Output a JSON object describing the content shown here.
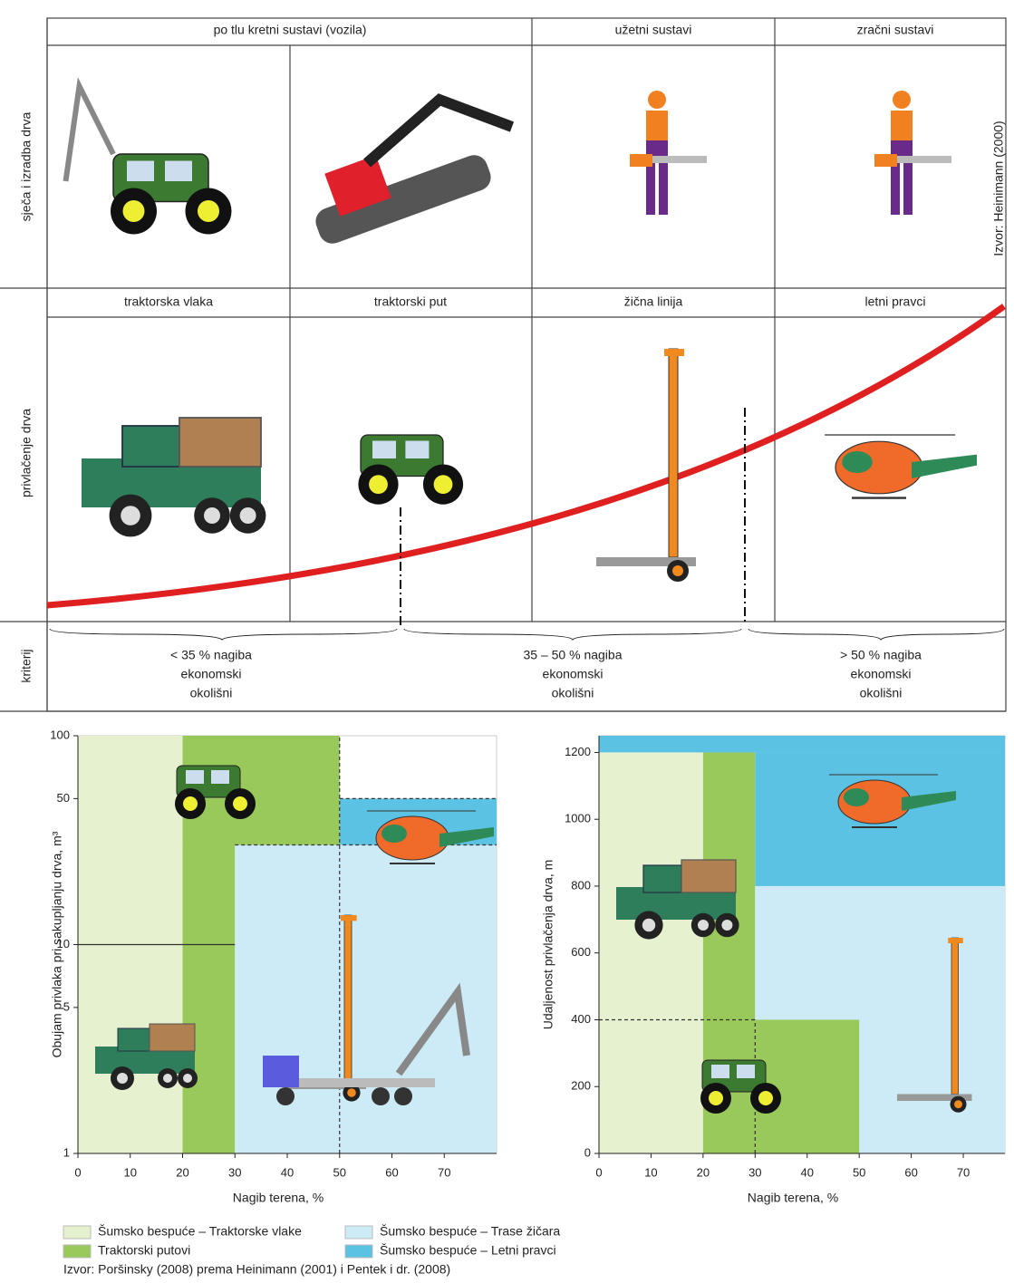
{
  "top": {
    "row_labels": [
      "sječa i izradba drva",
      "privlačenje drva",
      "kriterij"
    ],
    "system_headers": [
      "po tlu kretni sustavi (vozila)",
      "užetni sustavi",
      "zračni sustavi"
    ],
    "route_headers": [
      "traktorska vlaka",
      "traktorski put",
      "žična linija",
      "letni pravci"
    ],
    "criteria": [
      [
        "< 35 % nagiba",
        "ekonomski",
        "okolišni"
      ],
      [
        "35 – 50 % nagiba",
        "ekonomski",
        "okolišni"
      ],
      [
        "> 50 % nagiba",
        "ekonomski",
        "okolišni"
      ]
    ],
    "source": "Izvor: Heinimann (2000)"
  },
  "charts": [
    {
      "type": "zones",
      "ylabel": "Obujam privlaka pri sakupljanju drva, m³",
      "xlabel": "Nagib terena, %",
      "xlim": [
        0,
        80
      ],
      "xticks": [
        0,
        10,
        20,
        30,
        40,
        50,
        60,
        70
      ],
      "ylim": [
        1,
        100
      ],
      "yticks": [
        1,
        5,
        10,
        50,
        100
      ],
      "log_y": true,
      "regions": [
        {
          "x": [
            0,
            20
          ],
          "y": [
            1,
            100
          ],
          "color": "#e6f2cf"
        },
        {
          "x": [
            20,
            50
          ],
          "y": [
            30,
            100
          ],
          "color": "#98c95a"
        },
        {
          "x": [
            20,
            30
          ],
          "y": [
            1,
            30
          ],
          "color": "#98c95a"
        },
        {
          "x": [
            30,
            80
          ],
          "y": [
            1,
            30
          ],
          "color": "#cdebf6"
        },
        {
          "x": [
            50,
            80
          ],
          "y": [
            30,
            50
          ],
          "color": "#5bc2e3"
        }
      ],
      "lines": [
        {
          "x": [
            0,
            30
          ],
          "y": [
            10,
            10
          ],
          "dashed": false
        },
        {
          "x": [
            50,
            50
          ],
          "y": [
            1,
            100
          ],
          "dashed": true
        },
        {
          "x": [
            30,
            80
          ],
          "y": [
            30,
            30
          ],
          "dashed": true
        },
        {
          "x": [
            50,
            80
          ],
          "y": [
            50,
            50
          ],
          "dashed": true
        }
      ]
    },
    {
      "type": "zones",
      "ylabel": "Udaljenost privlačenja drva, m",
      "xlabel": "Nagib terena, %",
      "xlim": [
        0,
        78
      ],
      "xticks": [
        0,
        10,
        20,
        30,
        40,
        50,
        60,
        70
      ],
      "ylim": [
        0,
        1250
      ],
      "yticks": [
        0,
        200,
        400,
        600,
        800,
        1000,
        1200
      ],
      "log_y": false,
      "regions": [
        {
          "x": [
            0,
            78
          ],
          "y": [
            1200,
            1250
          ],
          "color": "#5bc2e3"
        },
        {
          "x": [
            30,
            78
          ],
          "y": [
            800,
            1200
          ],
          "color": "#5bc2e3"
        },
        {
          "x": [
            0,
            20
          ],
          "y": [
            0,
            1200
          ],
          "color": "#e6f2cf"
        },
        {
          "x": [
            20,
            30
          ],
          "y": [
            0,
            1200
          ],
          "color": "#98c95a"
        },
        {
          "x": [
            30,
            78
          ],
          "y": [
            0,
            800
          ],
          "color": "#cdebf6"
        },
        {
          "x": [
            30,
            50
          ],
          "y": [
            0,
            400
          ],
          "color": "#98c95a"
        }
      ],
      "lines": [
        {
          "x": [
            0,
            30
          ],
          "y": [
            400,
            400
          ],
          "dashed": true
        },
        {
          "x": [
            30,
            30
          ],
          "y": [
            0,
            400
          ],
          "dashed": true
        }
      ]
    }
  ],
  "legend": {
    "items": [
      {
        "name": "Šumsko bespuće – Traktorske vlake",
        "color": "#e6f2cf"
      },
      {
        "name": "Traktorski putovi",
        "color": "#98c95a"
      },
      {
        "name": "Šumsko bespuće – Trase žičara",
        "color": "#cdebf6"
      },
      {
        "name": "Šumsko bespuće – Letni pravci",
        "color": "#5bc2e3"
      }
    ],
    "source": "Izvor: Poršinsky (2008) prema Heinimann (2001) i Pentek i dr. (2008)"
  }
}
